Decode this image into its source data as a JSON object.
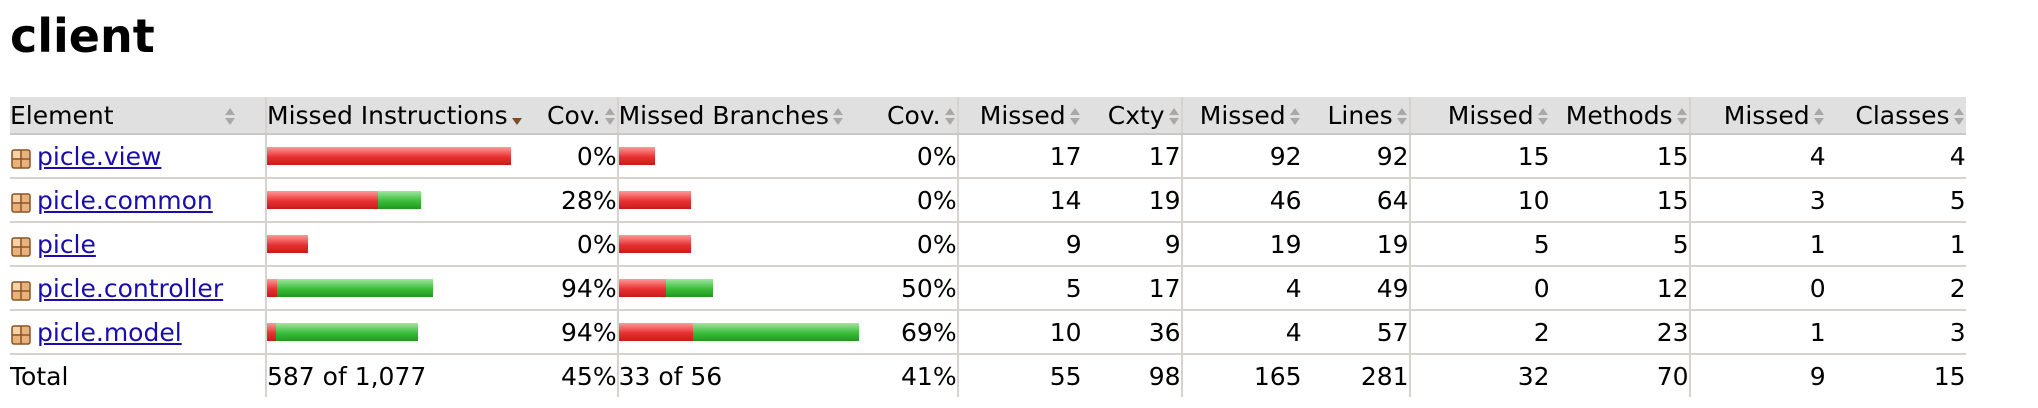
{
  "title": "client",
  "headers": {
    "element": "Element",
    "missed_instructions": "Missed Instructions",
    "cov_instr": "Cov.",
    "missed_branches": "Missed Branches",
    "cov_branch": "Cov.",
    "missed_cxty": "Missed",
    "cxty": "Cxty",
    "missed_lines": "Missed",
    "lines": "Lines",
    "missed_methods": "Missed",
    "methods": "Methods",
    "missed_classes": "Missed",
    "classes": "Classes"
  },
  "sorted_column": "missed_instructions",
  "icons": {
    "package": "package-icon",
    "sort": "sort-arrows-icon"
  },
  "colors": {
    "missed_bar": "#e93232",
    "covered_bar": "#3cbc3c",
    "header_bg": "#e0e0e0",
    "link": "#1a0dab"
  },
  "rows": [
    {
      "name": "picle.view",
      "instr_missed_fraction": 1.0,
      "instr_bar_fraction": 1.0,
      "cov_instr": "0%",
      "branch_missed_fraction": 1.0,
      "branch_bar_fraction": 0.15,
      "cov_branch": "0%",
      "missed_cxty": "17",
      "cxty": "17",
      "missed_lines": "92",
      "lines": "92",
      "missed_methods": "15",
      "methods": "15",
      "missed_classes": "4",
      "classes": "4"
    },
    {
      "name": "picle.common",
      "instr_missed_fraction": 0.72,
      "instr_bar_fraction": 0.63,
      "cov_instr": "28%",
      "branch_missed_fraction": 1.0,
      "branch_bar_fraction": 0.3,
      "cov_branch": "0%",
      "missed_cxty": "14",
      "cxty": "19",
      "missed_lines": "46",
      "lines": "64",
      "missed_methods": "10",
      "methods": "15",
      "missed_classes": "3",
      "classes": "5"
    },
    {
      "name": "picle",
      "instr_missed_fraction": 1.0,
      "instr_bar_fraction": 0.17,
      "cov_instr": "0%",
      "branch_missed_fraction": 1.0,
      "branch_bar_fraction": 0.3,
      "cov_branch": "0%",
      "missed_cxty": "9",
      "cxty": "9",
      "missed_lines": "19",
      "lines": "19",
      "missed_methods": "5",
      "methods": "5",
      "missed_classes": "1",
      "classes": "1"
    },
    {
      "name": "picle.controller",
      "instr_missed_fraction": 0.06,
      "instr_bar_fraction": 0.68,
      "cov_instr": "94%",
      "branch_missed_fraction": 0.5,
      "branch_bar_fraction": 0.39,
      "cov_branch": "50%",
      "missed_cxty": "5",
      "cxty": "17",
      "missed_lines": "4",
      "lines": "49",
      "missed_methods": "0",
      "methods": "12",
      "missed_classes": "0",
      "classes": "2"
    },
    {
      "name": "picle.model",
      "instr_missed_fraction": 0.06,
      "instr_bar_fraction": 0.62,
      "cov_instr": "94%",
      "branch_missed_fraction": 0.31,
      "branch_bar_fraction": 1.0,
      "cov_branch": "69%",
      "missed_cxty": "10",
      "cxty": "36",
      "missed_lines": "4",
      "lines": "57",
      "missed_methods": "2",
      "methods": "23",
      "missed_classes": "1",
      "classes": "3"
    }
  ],
  "total": {
    "label": "Total",
    "missed_instructions": "587 of 1,077",
    "cov_instr": "45%",
    "missed_branches": "33 of 56",
    "cov_branch": "41%",
    "missed_cxty": "55",
    "cxty": "98",
    "missed_lines": "165",
    "lines": "281",
    "missed_methods": "32",
    "methods": "70",
    "missed_classes": "9",
    "classes": "15"
  }
}
